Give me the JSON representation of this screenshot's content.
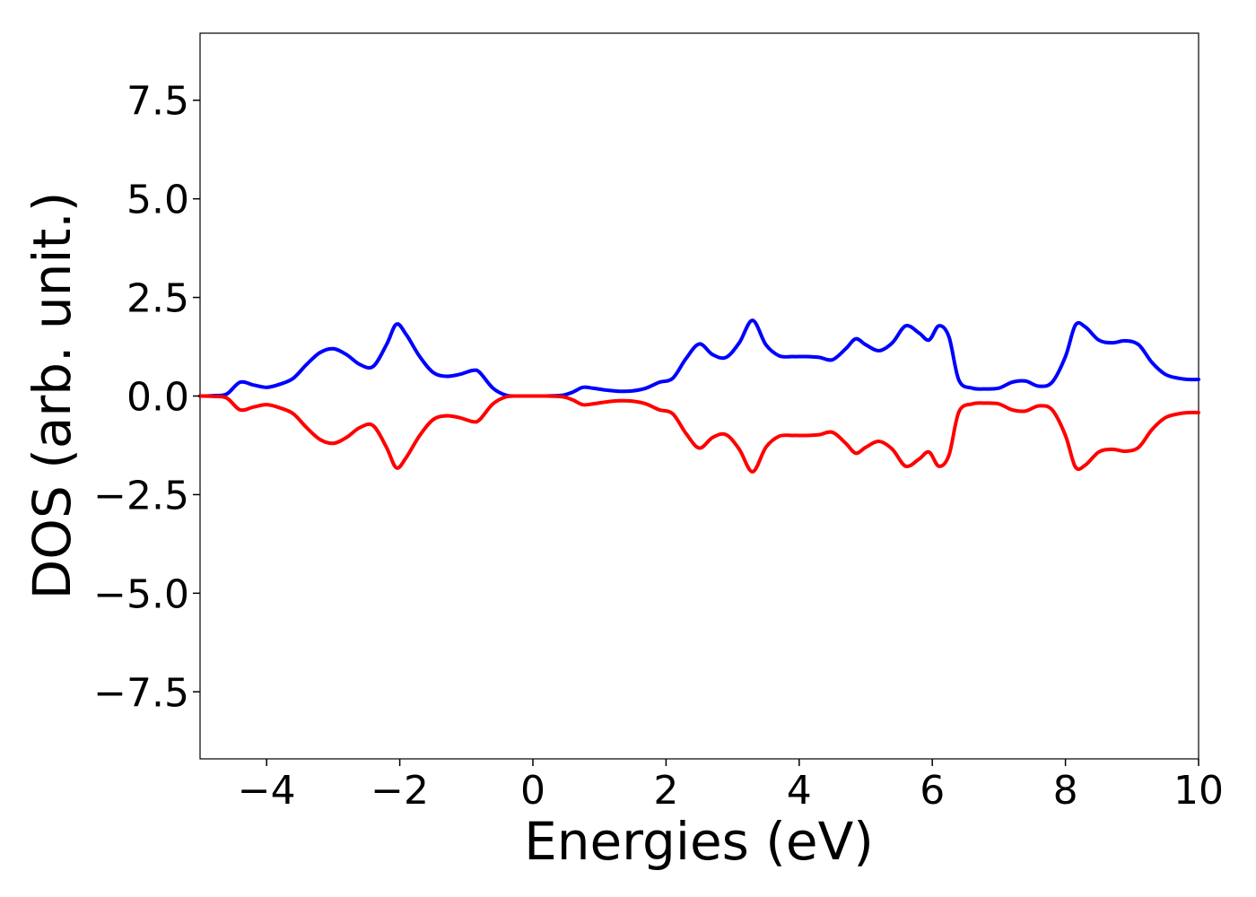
{
  "chart_data": {
    "type": "line",
    "xlabel": "Energies (eV)",
    "ylabel": "DOS (arb. unit.)",
    "xlim": [
      -5,
      10
    ],
    "ylim": [
      -9.2,
      9.2
    ],
    "xticks": [
      -4,
      -2,
      0,
      2,
      4,
      6,
      8,
      10
    ],
    "xtick_labels": [
      "−4",
      "−2",
      "0",
      "2",
      "4",
      "6",
      "8",
      "10"
    ],
    "yticks": [
      7.5,
      5.0,
      2.5,
      0.0,
      -2.5,
      -5.0,
      -7.5
    ],
    "ytick_labels": [
      "7.5",
      "5.0",
      "2.5",
      "0.0",
      "−2.5",
      "−5.0",
      "−7.5"
    ],
    "grid": false,
    "legend": false,
    "series": [
      {
        "color": "#0000ff",
        "x": [
          -5,
          -4.8,
          -4.6,
          -4.4,
          -4.2,
          -4.0,
          -3.8,
          -3.6,
          -3.4,
          -3.2,
          -3.0,
          -2.8,
          -2.6,
          -2.4,
          -2.2,
          -2.05,
          -1.9,
          -1.7,
          -1.5,
          -1.3,
          -1.1,
          -0.9,
          -0.8,
          -0.6,
          -0.4,
          -0.2,
          0.0,
          0.2,
          0.45,
          0.6,
          0.75,
          0.9,
          1.1,
          1.3,
          1.5,
          1.7,
          1.9,
          2.1,
          2.3,
          2.5,
          2.7,
          2.9,
          3.1,
          3.3,
          3.5,
          3.7,
          3.9,
          4.1,
          4.3,
          4.5,
          4.7,
          4.85,
          5.0,
          5.2,
          5.4,
          5.6,
          5.8,
          5.95,
          6.1,
          6.25,
          6.4,
          6.6,
          6.8,
          7.0,
          7.2,
          7.4,
          7.6,
          7.8,
          8.0,
          8.15,
          8.3,
          8.5,
          8.7,
          8.9,
          9.1,
          9.3,
          9.5,
          9.7,
          9.85,
          10.0
        ],
        "y": [
          0.0,
          0.01,
          0.05,
          0.35,
          0.28,
          0.22,
          0.3,
          0.45,
          0.8,
          1.1,
          1.2,
          1.05,
          0.8,
          0.75,
          1.3,
          1.82,
          1.55,
          1.0,
          0.6,
          0.5,
          0.55,
          0.65,
          0.6,
          0.2,
          0.02,
          0.0,
          0.0,
          0.0,
          0.02,
          0.1,
          0.22,
          0.2,
          0.15,
          0.12,
          0.13,
          0.2,
          0.35,
          0.45,
          0.95,
          1.32,
          1.05,
          0.98,
          1.35,
          1.92,
          1.3,
          1.02,
          1.0,
          1.0,
          0.98,
          0.92,
          1.2,
          1.45,
          1.3,
          1.15,
          1.35,
          1.78,
          1.6,
          1.42,
          1.78,
          1.5,
          0.4,
          0.2,
          0.18,
          0.2,
          0.35,
          0.38,
          0.25,
          0.35,
          1.0,
          1.8,
          1.75,
          1.42,
          1.35,
          1.4,
          1.3,
          0.85,
          0.55,
          0.45,
          0.42,
          0.42
        ]
      },
      {
        "color": "#ff0000",
        "x": [
          -5,
          -4.8,
          -4.6,
          -4.4,
          -4.2,
          -4.0,
          -3.8,
          -3.6,
          -3.4,
          -3.2,
          -3.0,
          -2.8,
          -2.6,
          -2.4,
          -2.2,
          -2.05,
          -1.9,
          -1.7,
          -1.5,
          -1.3,
          -1.1,
          -0.9,
          -0.8,
          -0.6,
          -0.4,
          -0.2,
          0.0,
          0.2,
          0.45,
          0.6,
          0.75,
          0.9,
          1.1,
          1.3,
          1.5,
          1.7,
          1.9,
          2.1,
          2.3,
          2.5,
          2.7,
          2.9,
          3.1,
          3.3,
          3.5,
          3.7,
          3.9,
          4.1,
          4.3,
          4.5,
          4.7,
          4.85,
          5.0,
          5.2,
          5.4,
          5.6,
          5.8,
          5.95,
          6.1,
          6.25,
          6.4,
          6.6,
          6.8,
          7.0,
          7.2,
          7.4,
          7.6,
          7.8,
          8.0,
          8.15,
          8.3,
          8.5,
          8.7,
          8.9,
          9.1,
          9.3,
          9.5,
          9.7,
          9.85,
          10.0
        ],
        "y": [
          0.0,
          -0.01,
          -0.05,
          -0.35,
          -0.28,
          -0.22,
          -0.3,
          -0.45,
          -0.8,
          -1.1,
          -1.2,
          -1.05,
          -0.8,
          -0.75,
          -1.3,
          -1.82,
          -1.55,
          -1.0,
          -0.6,
          -0.5,
          -0.55,
          -0.65,
          -0.6,
          -0.2,
          -0.02,
          0.0,
          0.0,
          0.0,
          -0.02,
          -0.1,
          -0.22,
          -0.2,
          -0.15,
          -0.12,
          -0.13,
          -0.2,
          -0.35,
          -0.45,
          -0.95,
          -1.32,
          -1.05,
          -0.98,
          -1.35,
          -1.92,
          -1.3,
          -1.02,
          -1.0,
          -1.0,
          -0.98,
          -0.92,
          -1.2,
          -1.45,
          -1.3,
          -1.15,
          -1.35,
          -1.78,
          -1.6,
          -1.42,
          -1.78,
          -1.5,
          -0.4,
          -0.2,
          -0.18,
          -0.2,
          -0.35,
          -0.38,
          -0.25,
          -0.35,
          -1.0,
          -1.8,
          -1.75,
          -1.42,
          -1.35,
          -1.4,
          -1.3,
          -0.85,
          -0.55,
          -0.45,
          -0.42,
          -0.42
        ]
      }
    ]
  }
}
